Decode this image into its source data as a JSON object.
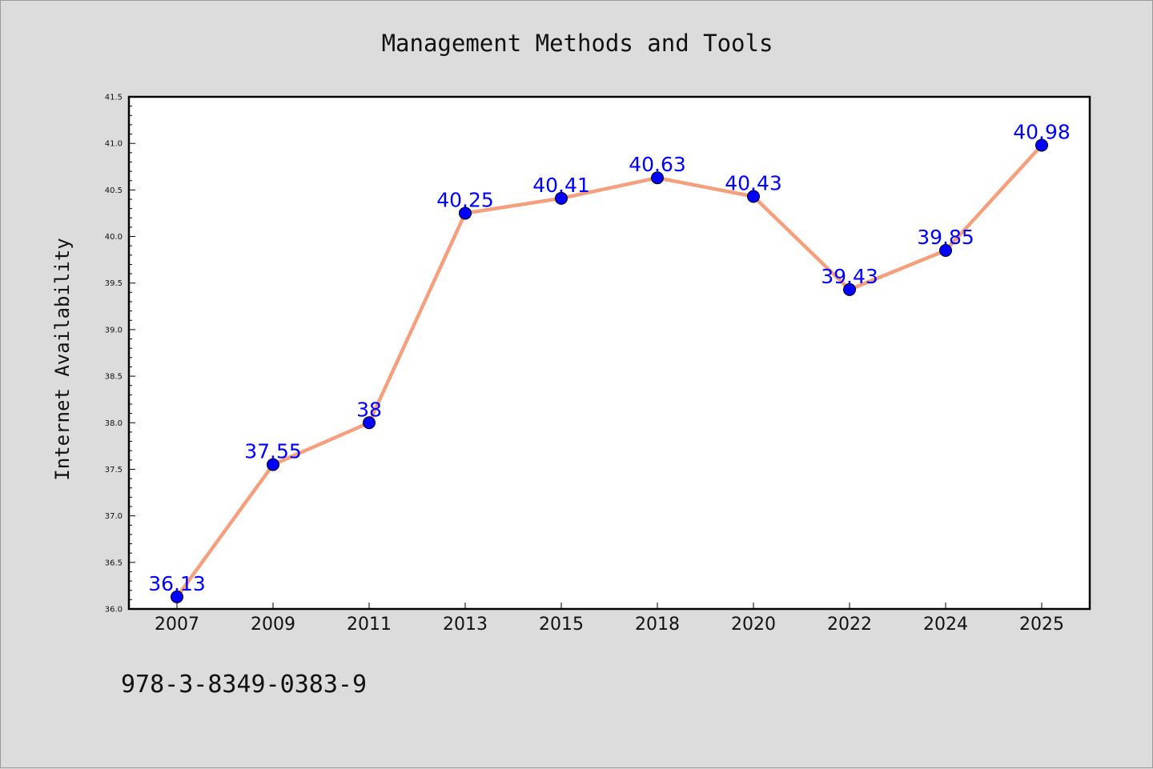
{
  "chart_data": {
    "type": "line",
    "title": "Management Methods and Tools",
    "xlabel": "",
    "ylabel": "Internet Availability",
    "categories": [
      "2007",
      "2009",
      "2011",
      "2013",
      "2015",
      "2018",
      "2020",
      "2022",
      "2024",
      "2025"
    ],
    "series": [
      {
        "values": [
          36.13,
          37.55,
          38,
          40.25,
          40.41,
          40.63,
          40.43,
          39.43,
          39.85,
          40.98
        ],
        "data_labels": [
          "36.13",
          "37.55",
          "38",
          "40.25",
          "40.41",
          "40.63",
          "40.43",
          "39.43",
          "39.85",
          "40.98"
        ],
        "line_color": "#f4a07e",
        "marker_color": "#0000ff"
      }
    ],
    "ylim": [
      36.0,
      41.5
    ],
    "yticks": [
      "36.0",
      "36.5",
      "37.0",
      "37.5",
      "38.0",
      "38.5",
      "39.0",
      "39.5",
      "40.0",
      "40.5",
      "41.0",
      "41.5"
    ],
    "grid": false,
    "legend": "none"
  },
  "annotation": "978-3-8349-0383-9",
  "colors": {
    "background": "#dcdcdc",
    "plot_area": "#ffffff",
    "line": "#f4a07e",
    "marker": "#0000ff",
    "data_label": "#0000ff"
  }
}
